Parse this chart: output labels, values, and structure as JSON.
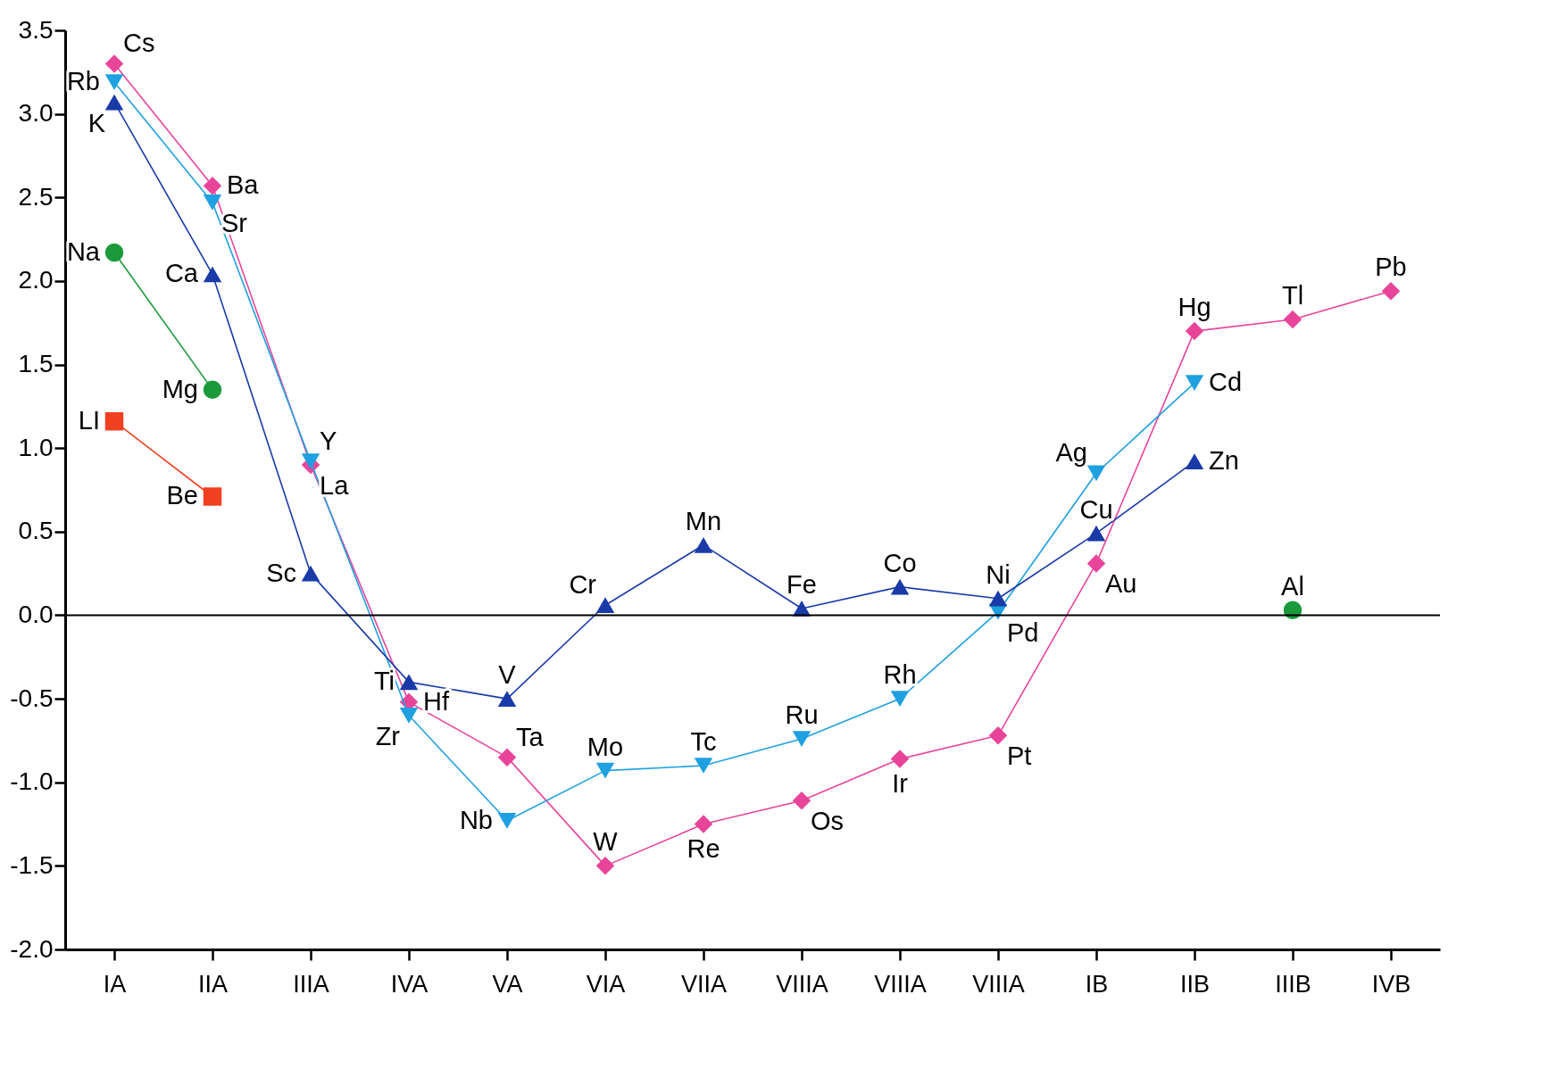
{
  "chart_data": {
    "type": "line",
    "categories": [
      "IA",
      "IIA",
      "IIIA",
      "IVA",
      "VA",
      "VIA",
      "VIIA",
      "VIIIA",
      "VIIIA",
      "VIIIA",
      "IB",
      "IIB",
      "IIIB",
      "IVB"
    ],
    "ylim": [
      -2,
      3.5
    ],
    "yticks": [
      {
        "value": -2,
        "label": "-2.0"
      },
      {
        "value": -1.5,
        "label": "-1.5"
      },
      {
        "value": -1,
        "label": "-1.0"
      },
      {
        "value": -0.5,
        "label": "-0.5"
      },
      {
        "value": 0,
        "label": "0.0"
      },
      {
        "value": 0.5,
        "label": "0.5"
      },
      {
        "value": 1,
        "label": "1.0"
      },
      {
        "value": 1.5,
        "label": "1.5"
      },
      {
        "value": 2,
        "label": "2.0"
      },
      {
        "value": 2.5,
        "label": "2.5"
      },
      {
        "value": 3,
        "label": "3.0"
      },
      {
        "value": 3.5,
        "label": "3.5"
      }
    ],
    "grid": false,
    "ref_lines": [
      {
        "axis": "y",
        "value": 0,
        "color": "#000000"
      }
    ],
    "series": [
      {
        "color": "#e8459a",
        "marker": "diamond",
        "values": [
          3.3,
          2.57,
          0.9,
          -0.52,
          -0.85,
          -1.5,
          -1.25,
          -1.11,
          -0.86,
          -0.72,
          0.31,
          1.7,
          1.77,
          1.94
        ],
        "value_labels": [
          "Cs",
          "Ba",
          "La",
          "Hf",
          "Ta",
          "W",
          "Re",
          "Os",
          "Ir",
          "Pt",
          "Au",
          "Hg",
          "Tl",
          "Pb"
        ]
      },
      {
        "color": "#1fa0e0",
        "marker": "triangle-down",
        "values": [
          3.19,
          2.47,
          0.92,
          -0.6,
          -1.23,
          -0.93,
          -0.9,
          -0.74,
          -0.5,
          0.02,
          0.85,
          1.39,
          null,
          null
        ],
        "value_labels": [
          "Rb",
          "Sr",
          "Y",
          "Zr",
          "Nb",
          "Mo",
          "Tc",
          "Ru",
          "Rh",
          "Pd",
          "Ag",
          "Cd",
          null,
          null
        ]
      },
      {
        "color": "#1a3aa8",
        "marker": "triangle",
        "values": [
          3.07,
          2.04,
          0.25,
          -0.4,
          -0.5,
          0.06,
          0.42,
          0.04,
          0.17,
          0.1,
          0.49,
          0.92,
          null,
          null
        ],
        "value_labels": [
          "K",
          "Ca",
          "Sc",
          "Ti",
          "V",
          "Cr",
          "Mn",
          "Fe",
          "Co",
          "Ni",
          "Cu",
          "Zn",
          null,
          null
        ]
      },
      {
        "color": "#1a9a3a",
        "marker": "circle",
        "values": [
          2.17,
          1.35,
          null,
          null,
          null,
          null,
          null,
          null,
          null,
          null,
          null,
          null,
          0.03,
          null
        ],
        "value_labels": [
          "Na",
          "Mg",
          null,
          null,
          null,
          null,
          null,
          null,
          null,
          null,
          null,
          null,
          "Al",
          null
        ]
      },
      {
        "color": "#f04020",
        "marker": "square",
        "values": [
          1.16,
          0.71,
          null,
          null,
          null,
          null,
          null,
          null,
          null,
          null,
          null,
          null,
          null,
          null
        ],
        "value_labels": [
          "LI",
          "Be",
          null,
          null,
          null,
          null,
          null,
          null,
          null,
          null,
          null,
          null,
          null,
          null
        ]
      }
    ]
  }
}
